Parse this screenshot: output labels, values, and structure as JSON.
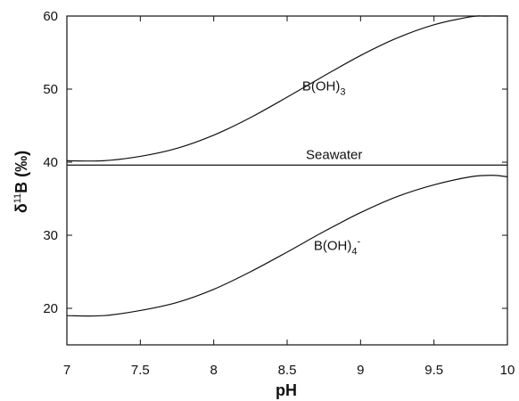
{
  "chart_data": {
    "type": "line",
    "title": "",
    "xlabel": "pH",
    "ylabel": {
      "symbol": "δ",
      "superscript": "11",
      "main": "B (‰)"
    },
    "xlim": [
      7,
      10
    ],
    "ylim": [
      15,
      60
    ],
    "xticks": [
      7,
      7.5,
      8,
      8.5,
      9,
      9.5,
      10
    ],
    "xtick_labels": [
      "7",
      "7.5",
      "8",
      "8.5",
      "9",
      "9.5",
      "10"
    ],
    "yticks": [
      20,
      30,
      40,
      50,
      60
    ],
    "ytick_labels": [
      "20",
      "30",
      "40",
      "50",
      "60"
    ],
    "grid": false,
    "legend": "none",
    "series": [
      {
        "key": "boh3",
        "x": [
          7.0,
          7.25,
          7.5,
          7.75,
          8.0,
          8.25,
          8.5,
          8.75,
          9.0,
          9.25,
          9.5,
          9.75,
          9.85,
          10.0
        ],
        "y": [
          40.2,
          40.2,
          40.8,
          41.9,
          43.7,
          46.1,
          48.9,
          51.8,
          54.6,
          57.0,
          58.8,
          59.9,
          60.0,
          60.0
        ]
      },
      {
        "key": "seawater",
        "x": [
          7.0,
          10.0
        ],
        "y": [
          39.6,
          39.6
        ]
      },
      {
        "key": "boh4",
        "x": [
          7.0,
          7.25,
          7.5,
          7.75,
          8.0,
          8.25,
          8.5,
          8.75,
          9.0,
          9.25,
          9.5,
          9.75,
          9.9,
          10.0
        ],
        "y": [
          19.0,
          19.0,
          19.7,
          20.8,
          22.6,
          25.0,
          27.7,
          30.5,
          33.1,
          35.3,
          36.9,
          38.0,
          38.2,
          38.0
        ]
      }
    ],
    "annotations": [
      {
        "key": "boh3",
        "base": "B(OH)",
        "sub": "3",
        "sup": "",
        "x": 8.75,
        "y": 49.8
      },
      {
        "key": "seawater",
        "base": "Seawater",
        "sub": "",
        "sup": "",
        "x": 8.82,
        "y": 40.4
      },
      {
        "key": "boh4",
        "base": "B(OH)",
        "sub": "4",
        "sup": "-",
        "x": 8.84,
        "y": 28.0
      }
    ]
  }
}
